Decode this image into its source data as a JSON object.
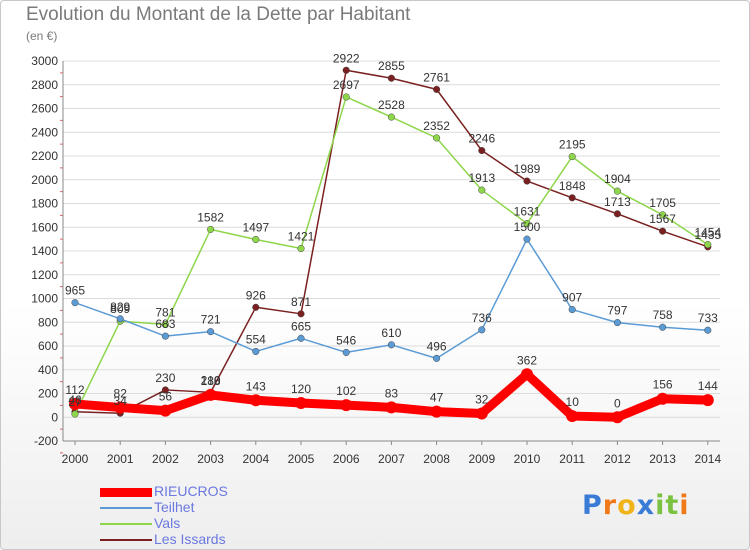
{
  "header": {
    "title": "Evolution du Montant de la Dette par Habitant",
    "subtitle": "(en €)"
  },
  "logo": {
    "letters": [
      "P",
      "r",
      "o",
      "x",
      "i",
      "t",
      "i"
    ],
    "colors": [
      "#3a7bd5",
      "#f07a1a",
      "#f0b41a",
      "#3a7bd5",
      "#7cc242",
      "#7cc242",
      "#f07a1a"
    ]
  },
  "chart_data": {
    "type": "line",
    "title": "Evolution du Montant de la Dette par Habitant",
    "subtitle": "(en €)",
    "x": [
      "2000",
      "2001",
      "2002",
      "2003",
      "2004",
      "2005",
      "2006",
      "2007",
      "2008",
      "2009",
      "2010",
      "2011",
      "2012",
      "2013",
      "2014"
    ],
    "ylim": [
      -200,
      3000
    ],
    "yticks": [
      "-200",
      "0",
      "200",
      "400",
      "600",
      "800",
      "1000",
      "1200",
      "1400",
      "1600",
      "1800",
      "2000",
      "2200",
      "2400",
      "2600",
      "2800",
      "3000"
    ],
    "grid": "horizontal",
    "legend_position": "bottom-left",
    "series": [
      {
        "name": "Les Issards",
        "color": "#7a2020",
        "values": [
          46,
          34,
          230,
          210,
          926,
          871,
          2922,
          2855,
          2761,
          2246,
          1989,
          1848,
          1713,
          1567,
          1435
        ],
        "labels": [
          "46",
          "34",
          "230",
          "210",
          "926",
          "871",
          "2922",
          "2855",
          "2761",
          "2246",
          "1989",
          "1848",
          "1713",
          "1567",
          "1435"
        ]
      },
      {
        "name": "Vals",
        "color": "#8ed64a",
        "values": [
          27,
          809,
          781,
          1582,
          1497,
          1421,
          2697,
          2528,
          2352,
          1913,
          1631,
          2195,
          1904,
          1705,
          1454
        ],
        "labels": [
          "27",
          "809",
          "781",
          "1582",
          "1497",
          "1421",
          "2697",
          "2528",
          "2352",
          "1913",
          "1631",
          "2195",
          "1904",
          "1705",
          "1454"
        ]
      },
      {
        "name": "Teilhet",
        "color": "#5b9bd5",
        "values": [
          965,
          829,
          683,
          721,
          554,
          665,
          546,
          610,
          496,
          736,
          1500,
          907,
          797,
          758,
          733
        ],
        "labels": [
          "965",
          "829",
          "683",
          "721",
          "554",
          "665",
          "546",
          "610",
          "496",
          "736",
          "1500",
          "907",
          "797",
          "758",
          "733"
        ]
      },
      {
        "name": "RIEUCROS",
        "color": "#ff0000",
        "values": [
          112,
          82,
          56,
          188,
          143,
          120,
          102,
          83,
          47,
          32,
          362,
          10,
          0,
          156,
          144
        ],
        "labels": [
          "112",
          "82",
          "56",
          "188",
          "143",
          "120",
          "102",
          "83",
          "47",
          "32",
          "362",
          "10",
          "0",
          "156",
          "144"
        ]
      }
    ],
    "legend": [
      {
        "name": "RIEUCROS",
        "color": "#ff0000",
        "text_color": "#6b78e0",
        "thickness": 9
      },
      {
        "name": "Teilhet",
        "color": "#5b9bd5",
        "text_color": "#6b78e0",
        "thickness": 2
      },
      {
        "name": "Vals",
        "color": "#8ed64a",
        "text_color": "#6b78e0",
        "thickness": 2
      },
      {
        "name": "Les Issards",
        "color": "#7a2020",
        "text_color": "#6b78e0",
        "thickness": 2
      }
    ]
  }
}
